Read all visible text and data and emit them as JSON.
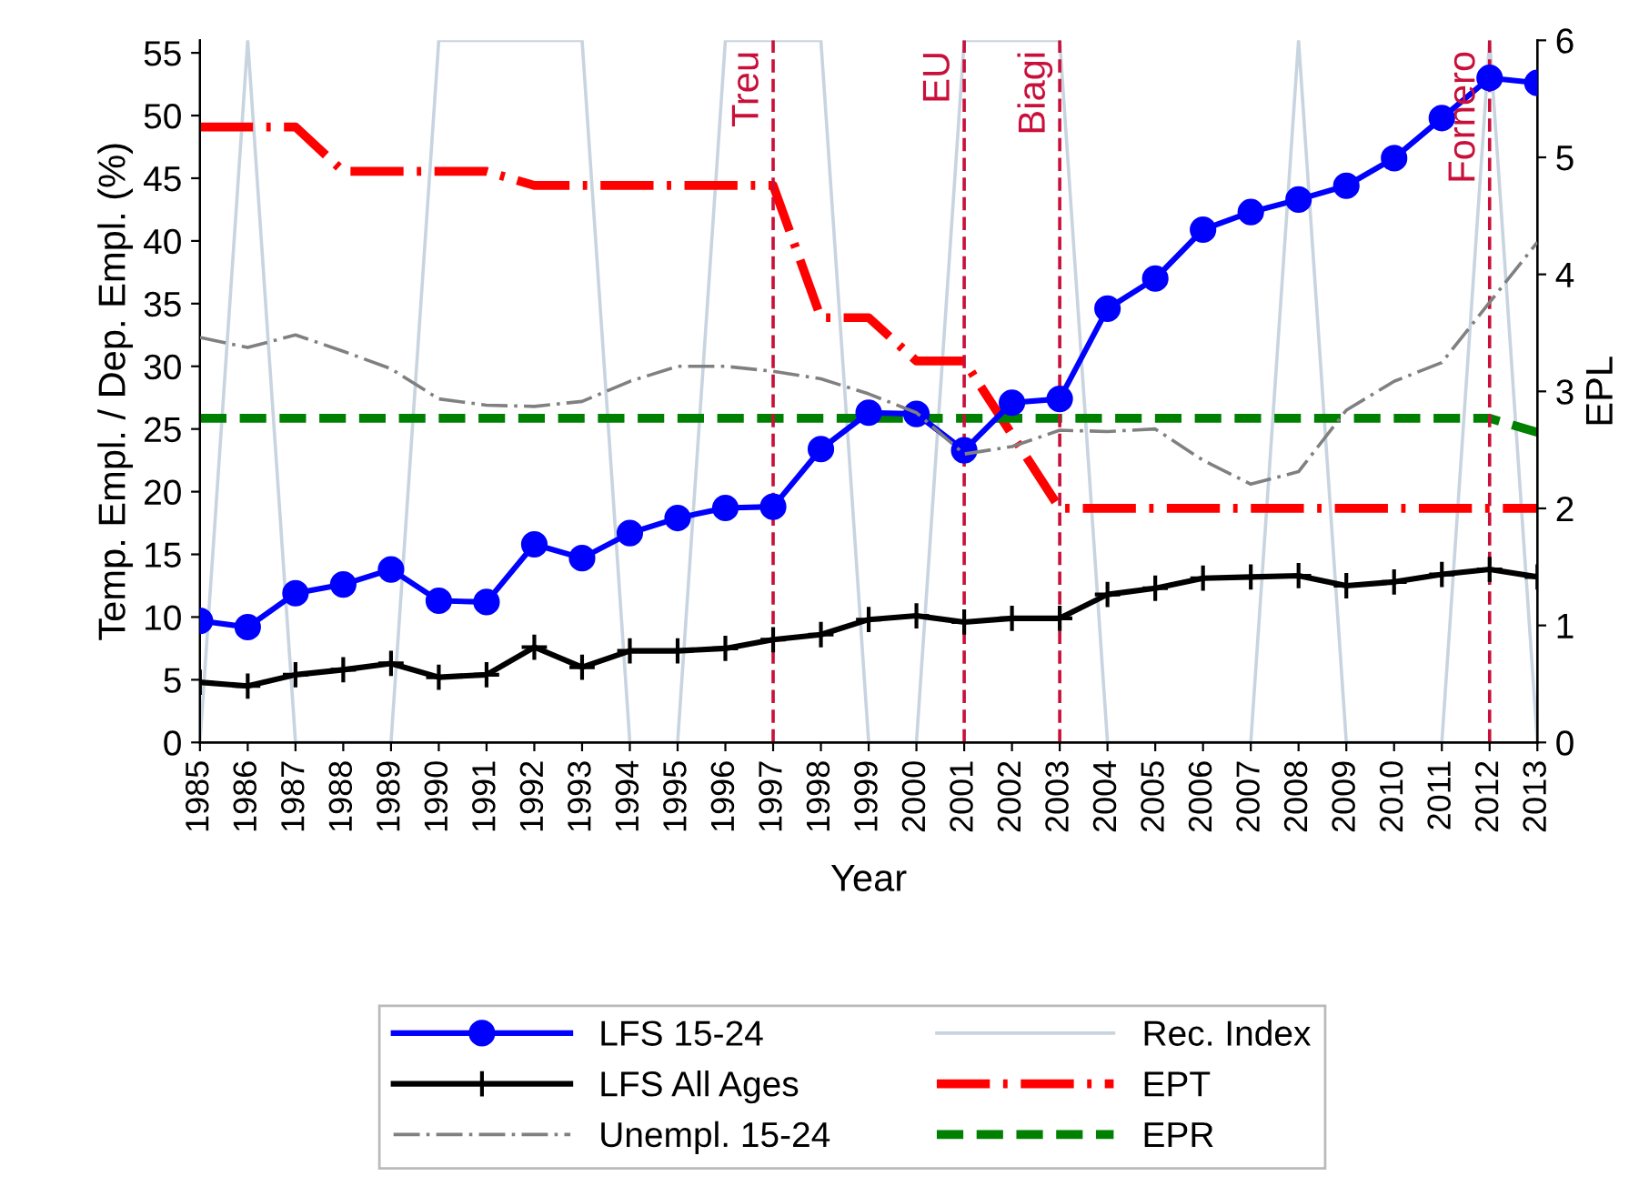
{
  "chart_data": {
    "type": "line",
    "xlabel": "Year",
    "ylabel": "Temp. Empl. / Dep. Empl. (%)",
    "y2label": "EPL",
    "x": [
      1985,
      1986,
      1987,
      1988,
      1989,
      1990,
      1991,
      1992,
      1993,
      1994,
      1995,
      1996,
      1997,
      1998,
      1999,
      2000,
      2001,
      2002,
      2003,
      2004,
      2005,
      2006,
      2007,
      2008,
      2009,
      2010,
      2011,
      2012,
      2013
    ],
    "xlim": [
      1985,
      2013
    ],
    "xticks": [
      1985,
      1986,
      1987,
      1988,
      1989,
      1990,
      1991,
      1992,
      1993,
      1994,
      1995,
      1996,
      1997,
      1998,
      1999,
      2000,
      2001,
      2002,
      2003,
      2004,
      2005,
      2006,
      2007,
      2008,
      2009,
      2010,
      2011,
      2012,
      2013
    ],
    "ylim": [
      0,
      56
    ],
    "yticks": [
      0,
      5,
      10,
      15,
      20,
      25,
      30,
      35,
      40,
      45,
      50,
      55
    ],
    "y2lim": [
      0,
      6
    ],
    "y2ticks": [
      0,
      1,
      2,
      3,
      4,
      5,
      6
    ],
    "grid": false,
    "legend": "bottom",
    "series": [
      {
        "name": "LFS 15-24",
        "color": "#0000ff",
        "marker": "circle",
        "line_style": "solid",
        "values": [
          9.7,
          9.2,
          11.9,
          12.6,
          13.8,
          11.3,
          11.2,
          15.8,
          14.7,
          16.7,
          17.9,
          18.7,
          18.8,
          23.4,
          26.3,
          26.2,
          23.3,
          27.1,
          27.4,
          34.6,
          37.0,
          40.9,
          42.3,
          43.3,
          44.4,
          46.6,
          49.8,
          53.0,
          52.6
        ]
      },
      {
        "name": "LFS All Ages",
        "color": "#000000",
        "marker": "cross",
        "line_style": "solid",
        "values": [
          4.8,
          4.5,
          5.4,
          5.8,
          6.3,
          5.2,
          5.4,
          7.6,
          6.0,
          7.3,
          7.3,
          7.5,
          8.2,
          8.6,
          9.8,
          10.1,
          9.6,
          9.9,
          9.9,
          11.8,
          12.3,
          13.1,
          13.2,
          13.3,
          12.5,
          12.8,
          13.4,
          13.8,
          13.2
        ]
      },
      {
        "name": "Unempl. 15-24",
        "color": "#808080",
        "marker": "none",
        "line_style": "dashdot",
        "values": [
          32.3,
          31.5,
          32.5,
          31.2,
          29.8,
          27.4,
          26.9,
          26.8,
          27.2,
          28.8,
          30.0,
          30.0,
          29.6,
          29.0,
          27.8,
          26.3,
          23.0,
          23.6,
          24.9,
          24.8,
          25.0,
          22.5,
          20.6,
          21.6,
          26.5,
          28.8,
          30.3,
          35.1,
          39.9
        ]
      },
      {
        "name": "Rec. Index",
        "color": "#c8d4e0",
        "marker": "none",
        "line_style": "solid",
        "axis": "y2",
        "values": [
          0,
          6,
          0,
          0,
          0,
          6,
          6,
          6,
          6,
          0,
          0,
          6,
          6,
          6,
          0,
          0,
          6,
          6,
          6,
          0,
          0,
          0,
          0,
          6,
          0,
          0,
          0,
          6,
          0
        ]
      },
      {
        "name": "EPT",
        "color": "#ff0000",
        "marker": "none",
        "line_style": "dashdot",
        "axis": "y2",
        "values": [
          5.26,
          5.26,
          5.26,
          4.88,
          4.88,
          4.88,
          4.88,
          4.76,
          4.76,
          4.76,
          4.76,
          4.76,
          4.76,
          3.63,
          3.63,
          3.26,
          3.26,
          2.63,
          2.0,
          2.0,
          2.0,
          2.0,
          2.0,
          2.0,
          2.0,
          2.0,
          2.0,
          2.0,
          2.0
        ]
      },
      {
        "name": "EPR",
        "color": "#008000",
        "marker": "none",
        "line_style": "dashed",
        "axis": "y2",
        "values": [
          2.77,
          2.77,
          2.77,
          2.77,
          2.77,
          2.77,
          2.77,
          2.77,
          2.77,
          2.77,
          2.77,
          2.77,
          2.77,
          2.77,
          2.77,
          2.77,
          2.77,
          2.77,
          2.77,
          2.77,
          2.77,
          2.77,
          2.77,
          2.77,
          2.77,
          2.77,
          2.77,
          2.77,
          2.65
        ]
      }
    ],
    "ref_lines": [
      {
        "axis": "x",
        "value": 1997,
        "label": "Treu",
        "color": "#c8103a",
        "line_style": "dashed"
      },
      {
        "axis": "x",
        "value": 2001,
        "label": "EU",
        "color": "#c8103a",
        "line_style": "dashed"
      },
      {
        "axis": "x",
        "value": 2003,
        "label": "Biagi",
        "color": "#c8103a",
        "line_style": "dashed"
      },
      {
        "axis": "x",
        "value": 2012,
        "label": "Fornero",
        "color": "#c8103a",
        "line_style": "dashed"
      }
    ]
  }
}
